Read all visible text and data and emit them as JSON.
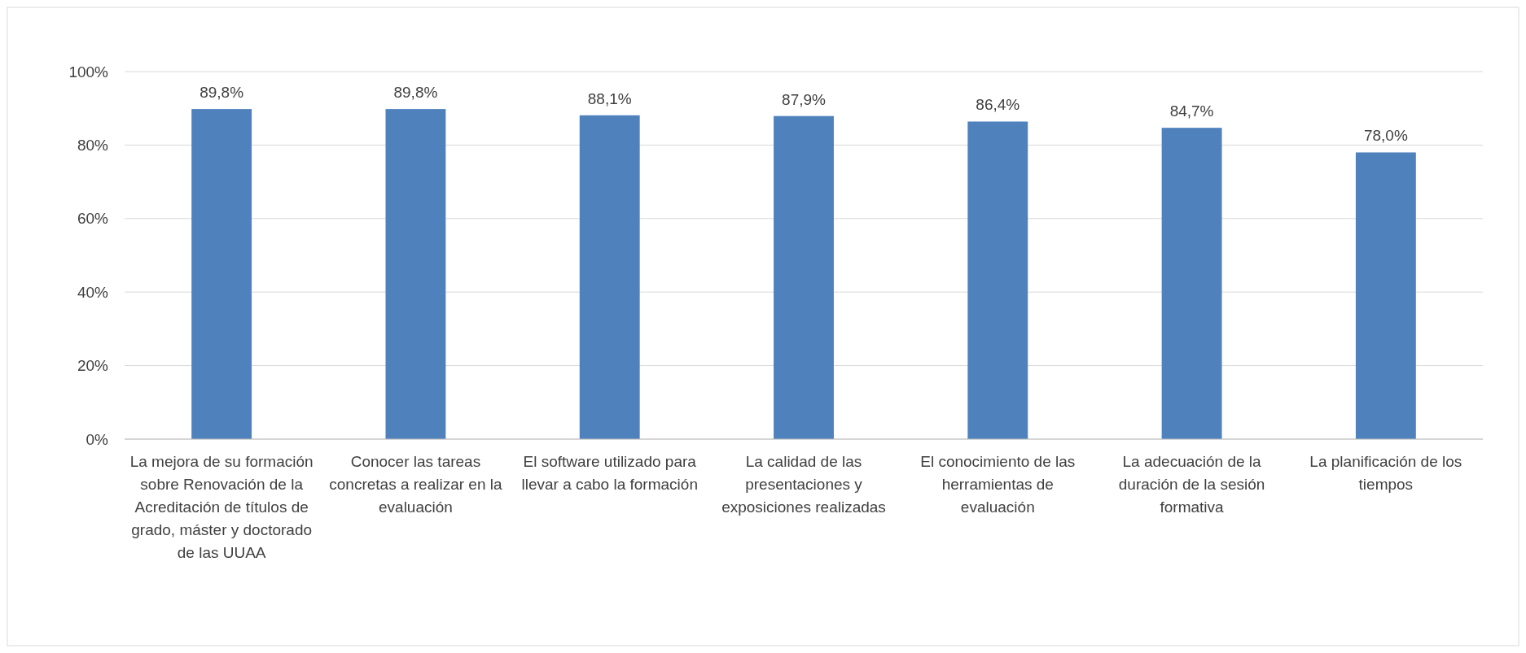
{
  "chart_data": {
    "type": "bar",
    "categories": [
      "La mejora de su formación sobre Renovación de la Acreditación de títulos de grado, máster y doctorado de las UUAA",
      "Conocer las tareas concretas a realizar en la evaluación",
      "El software utilizado para llevar a cabo la formación",
      "La calidad de las presentaciones y exposiciones realizadas",
      "El conocimiento de las herramientas de evaluación",
      "La adecuación de la duración de la sesión formativa",
      "La planificación de los tiempos"
    ],
    "values": [
      89.8,
      89.8,
      88.1,
      87.9,
      86.4,
      84.7,
      78.0
    ],
    "value_labels": [
      "89,8%",
      "89,8%",
      "88,1%",
      "87,9%",
      "86,4%",
      "84,7%",
      "78,0%"
    ],
    "color": "#4f81bd",
    "ylim": [
      0,
      100
    ],
    "yticks": [
      {
        "value": 0,
        "label": "0%"
      },
      {
        "value": 20,
        "label": "20%"
      },
      {
        "value": 40,
        "label": "40%"
      },
      {
        "value": 60,
        "label": "60%"
      },
      {
        "value": 80,
        "label": "80%"
      },
      {
        "value": 100,
        "label": "100%"
      }
    ],
    "grid": "y"
  }
}
